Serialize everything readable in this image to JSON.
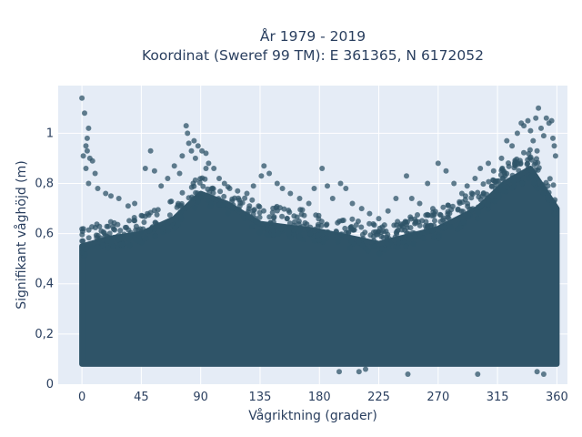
{
  "chart_data": {
    "type": "scatter",
    "title": [
      "År 1979 - 2019",
      "Koordinat (Sweref 99 TM): E 361365, N 6172052"
    ],
    "xlabel": "Vågriktning (grader)",
    "ylabel": "Signifikant våghöjd (m)",
    "xlim": [
      -18,
      368
    ],
    "ylim": [
      0,
      1.19
    ],
    "xticks": [
      0,
      45,
      90,
      135,
      180,
      225,
      270,
      315,
      360
    ],
    "xtick_labels": [
      "0",
      "45",
      "90",
      "135",
      "180",
      "225",
      "270",
      "315",
      "360"
    ],
    "yticks": [
      0,
      0.2,
      0.4,
      0.6,
      0.8,
      1
    ],
    "ytick_labels": [
      "0",
      "0,2",
      "0,4",
      "0,6",
      "0,8",
      "1"
    ],
    "grid": true,
    "marker_color": "#2f5468",
    "plot_bg": "#e5ecf6",
    "dense_band": [
      {
        "x": 0,
        "y_low": 0.08,
        "y_high": 0.55
      },
      {
        "x": 20,
        "y_low": 0.08,
        "y_high": 0.58
      },
      {
        "x": 45,
        "y_low": 0.08,
        "y_high": 0.6
      },
      {
        "x": 70,
        "y_low": 0.08,
        "y_high": 0.66
      },
      {
        "x": 90,
        "y_low": 0.08,
        "y_high": 0.76
      },
      {
        "x": 110,
        "y_low": 0.08,
        "y_high": 0.72
      },
      {
        "x": 135,
        "y_low": 0.08,
        "y_high": 0.64
      },
      {
        "x": 180,
        "y_low": 0.08,
        "y_high": 0.61
      },
      {
        "x": 225,
        "y_low": 0.08,
        "y_high": 0.56
      },
      {
        "x": 270,
        "y_low": 0.08,
        "y_high": 0.62
      },
      {
        "x": 300,
        "y_low": 0.08,
        "y_high": 0.7
      },
      {
        "x": 320,
        "y_low": 0.08,
        "y_high": 0.8
      },
      {
        "x": 340,
        "y_low": 0.08,
        "y_high": 0.86
      },
      {
        "x": 360,
        "y_low": 0.08,
        "y_high": 0.7
      }
    ],
    "points": [
      [
        0,
        1.14
      ],
      [
        2,
        1.08
      ],
      [
        3,
        0.95
      ],
      [
        4,
        0.98
      ],
      [
        5,
        1.02
      ],
      [
        1,
        0.91
      ],
      [
        6,
        0.9
      ],
      [
        8,
        0.89
      ],
      [
        3,
        0.86
      ],
      [
        10,
        0.84
      ],
      [
        5,
        0.8
      ],
      [
        12,
        0.78
      ],
      [
        18,
        0.76
      ],
      [
        22,
        0.75
      ],
      [
        28,
        0.74
      ],
      [
        35,
        0.71
      ],
      [
        40,
        0.72
      ],
      [
        48,
        0.86
      ],
      [
        52,
        0.93
      ],
      [
        55,
        0.85
      ],
      [
        60,
        0.79
      ],
      [
        65,
        0.82
      ],
      [
        70,
        0.87
      ],
      [
        74,
        0.84
      ],
      [
        76,
        0.91
      ],
      [
        79,
        1.03
      ],
      [
        80,
        1.0
      ],
      [
        83,
        0.93
      ],
      [
        86,
        0.9
      ],
      [
        88,
        0.95
      ],
      [
        91,
        0.93
      ],
      [
        94,
        0.92
      ],
      [
        96,
        0.88
      ],
      [
        100,
        0.86
      ],
      [
        104,
        0.82
      ],
      [
        108,
        0.8
      ],
      [
        112,
        0.78
      ],
      [
        118,
        0.77
      ],
      [
        125,
        0.76
      ],
      [
        130,
        0.79
      ],
      [
        136,
        0.83
      ],
      [
        138,
        0.87
      ],
      [
        142,
        0.84
      ],
      [
        148,
        0.8
      ],
      [
        152,
        0.78
      ],
      [
        158,
        0.76
      ],
      [
        165,
        0.74
      ],
      [
        172,
        0.72
      ],
      [
        176,
        0.78
      ],
      [
        182,
        0.86
      ],
      [
        186,
        0.79
      ],
      [
        190,
        0.74
      ],
      [
        196,
        0.8
      ],
      [
        200,
        0.78
      ],
      [
        205,
        0.72
      ],
      [
        212,
        0.7
      ],
      [
        218,
        0.68
      ],
      [
        225,
        0.66
      ],
      [
        232,
        0.69
      ],
      [
        238,
        0.74
      ],
      [
        246,
        0.83
      ],
      [
        250,
        0.74
      ],
      [
        256,
        0.72
      ],
      [
        262,
        0.8
      ],
      [
        266,
        0.7
      ],
      [
        270,
        0.88
      ],
      [
        276,
        0.85
      ],
      [
        282,
        0.8
      ],
      [
        288,
        0.76
      ],
      [
        292,
        0.79
      ],
      [
        298,
        0.82
      ],
      [
        302,
        0.86
      ],
      [
        308,
        0.88
      ],
      [
        312,
        0.85
      ],
      [
        318,
        0.9
      ],
      [
        322,
        0.97
      ],
      [
        326,
        0.95
      ],
      [
        330,
        1.0
      ],
      [
        333,
        1.04
      ],
      [
        335,
        1.03
      ],
      [
        338,
        1.05
      ],
      [
        340,
        1.01
      ],
      [
        342,
        0.97
      ],
      [
        344,
        1.06
      ],
      [
        346,
        1.1
      ],
      [
        348,
        1.02
      ],
      [
        350,
        0.99
      ],
      [
        352,
        1.06
      ],
      [
        354,
        1.04
      ],
      [
        356,
        1.05
      ],
      [
        357,
        0.98
      ],
      [
        358,
        0.95
      ],
      [
        359,
        0.91
      ],
      [
        345,
        0.93
      ],
      [
        328,
        0.88
      ],
      [
        316,
        0.81
      ],
      [
        94,
        0.86
      ],
      [
        85,
        0.97
      ],
      [
        81,
        0.96
      ],
      [
        4,
        0.93
      ],
      [
        247,
        0.04
      ],
      [
        300,
        0.04
      ],
      [
        350,
        0.04
      ],
      [
        345,
        0.05
      ],
      [
        210,
        0.05
      ],
      [
        215,
        0.06
      ],
      [
        195,
        0.05
      ]
    ]
  }
}
